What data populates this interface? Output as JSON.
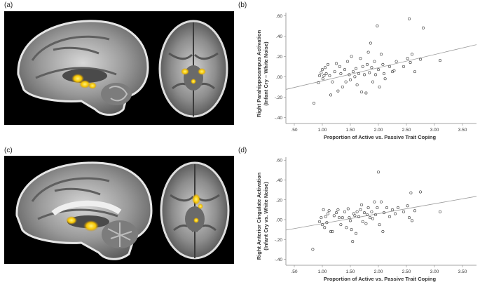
{
  "labels": {
    "a": "(a)",
    "b": "(b)",
    "c": "(c)",
    "d": "(d)"
  },
  "chart_data": [
    {
      "type": "scatter",
      "xlabel": "Proportion of Active vs. Passive Trait Coping",
      "ylabel": "Right Parahippocampus Activation (Infant Cry – White Noise)",
      "xlim": [
        0.35,
        3.75
      ],
      "ylim": [
        -0.46,
        0.63
      ],
      "xticks": [
        ".50",
        "1.00",
        "1.50",
        "2.00",
        "2.50",
        "3.00",
        "3.50"
      ],
      "xtick_values": [
        0.5,
        1.0,
        1.5,
        2.0,
        2.5,
        3.0,
        3.5
      ],
      "yticks": [
        "-.40",
        "-.20",
        ".00",
        ".20",
        ".40",
        ".60"
      ],
      "ytick_values": [
        -0.4,
        -0.2,
        0.0,
        0.2,
        0.4,
        0.6
      ],
      "fit_line": {
        "x": [
          0.35,
          3.75
        ],
        "y": [
          -0.125,
          0.315
        ]
      },
      "points": [
        [
          0.85,
          -0.26
        ],
        [
          0.93,
          -0.06
        ],
        [
          0.95,
          0.01
        ],
        [
          0.98,
          0.04
        ],
        [
          1.0,
          0.07
        ],
        [
          1.01,
          -0.02
        ],
        [
          1.03,
          0.01
        ],
        [
          1.05,
          0.09
        ],
        [
          1.07,
          0.03
        ],
        [
          1.1,
          0.12
        ],
        [
          1.13,
          0.01
        ],
        [
          1.15,
          -0.18
        ],
        [
          1.18,
          -0.05
        ],
        [
          1.22,
          0.05
        ],
        [
          1.25,
          0.13
        ],
        [
          1.28,
          -0.14
        ],
        [
          1.31,
          0.1
        ],
        [
          1.33,
          0.03
        ],
        [
          1.36,
          -0.1
        ],
        [
          1.4,
          0.07
        ],
        [
          1.42,
          -0.05
        ],
        [
          1.45,
          0.15
        ],
        [
          1.48,
          0.02
        ],
        [
          1.5,
          -0.03
        ],
        [
          1.52,
          0.2
        ],
        [
          1.55,
          0.05
        ],
        [
          1.58,
          0.0
        ],
        [
          1.6,
          0.08
        ],
        [
          1.62,
          -0.08
        ],
        [
          1.65,
          0.03
        ],
        [
          1.68,
          0.18
        ],
        [
          1.7,
          -0.15
        ],
        [
          1.72,
          0.1
        ],
        [
          1.75,
          0.02
        ],
        [
          1.78,
          -0.16
        ],
        [
          1.8,
          0.12
        ],
        [
          1.82,
          0.24
        ],
        [
          1.84,
          0.04
        ],
        [
          1.86,
          0.33
        ],
        [
          1.88,
          0.09
        ],
        [
          1.9,
          -0.05
        ],
        [
          1.93,
          0.15
        ],
        [
          1.95,
          0.02
        ],
        [
          1.98,
          0.5
        ],
        [
          2.0,
          0.07
        ],
        [
          2.02,
          -0.1
        ],
        [
          2.05,
          0.22
        ],
        [
          2.08,
          0.12
        ],
        [
          2.1,
          0.03
        ],
        [
          2.12,
          -0.02
        ],
        [
          2.2,
          0.1
        ],
        [
          2.25,
          0.05
        ],
        [
          2.28,
          0.06
        ],
        [
          2.32,
          0.15
        ],
        [
          2.45,
          0.1
        ],
        [
          2.52,
          0.18
        ],
        [
          2.55,
          0.57
        ],
        [
          2.57,
          0.14
        ],
        [
          2.6,
          0.22
        ],
        [
          2.65,
          0.05
        ],
        [
          2.75,
          0.17
        ],
        [
          2.8,
          0.48
        ],
        [
          3.1,
          0.16
        ]
      ]
    },
    {
      "type": "scatter",
      "xlabel": "Proportion of Active vs. Passive Trait Coping",
      "ylabel": "Right Anterior Cingulate Activation (Infant Cry vs. White Noise)",
      "xlim": [
        0.35,
        3.75
      ],
      "ylim": [
        -0.46,
        0.63
      ],
      "xticks": [
        ".50",
        "1.00",
        "1.50",
        "2.00",
        "2.50",
        "3.00",
        "3.50"
      ],
      "xtick_values": [
        0.5,
        1.0,
        1.5,
        2.0,
        2.5,
        3.0,
        3.5
      ],
      "yticks": [
        "-.40",
        "-.20",
        ".00",
        ".20",
        ".40",
        ".60"
      ],
      "ytick_values": [
        -0.4,
        -0.2,
        0.0,
        0.2,
        0.4,
        0.6
      ],
      "fit_line": {
        "x": [
          0.35,
          3.75
        ],
        "y": [
          -0.105,
          0.235
        ]
      },
      "points": [
        [
          0.83,
          -0.3
        ],
        [
          0.95,
          -0.02
        ],
        [
          0.98,
          0.02
        ],
        [
          1.0,
          -0.05
        ],
        [
          1.02,
          0.1
        ],
        [
          1.04,
          -0.08
        ],
        [
          1.06,
          0.03
        ],
        [
          1.08,
          -0.03
        ],
        [
          1.1,
          0.06
        ],
        [
          1.12,
          0.09
        ],
        [
          1.15,
          -0.12
        ],
        [
          1.18,
          -0.12
        ],
        [
          1.21,
          0.04
        ],
        [
          1.25,
          0.07
        ],
        [
          1.28,
          0.1
        ],
        [
          1.3,
          0.02
        ],
        [
          1.33,
          -0.05
        ],
        [
          1.36,
          0.02
        ],
        [
          1.4,
          0.08
        ],
        [
          1.43,
          -0.08
        ],
        [
          1.46,
          0.11
        ],
        [
          1.48,
          0.02
        ],
        [
          1.5,
          -0.01
        ],
        [
          1.52,
          -0.1
        ],
        [
          1.54,
          -0.22
        ],
        [
          1.56,
          0.06
        ],
        [
          1.58,
          0.04
        ],
        [
          1.6,
          -0.14
        ],
        [
          1.62,
          0.08
        ],
        [
          1.65,
          0.03
        ],
        [
          1.68,
          0.1
        ],
        [
          1.7,
          0.15
        ],
        [
          1.72,
          -0.02
        ],
        [
          1.75,
          0.07
        ],
        [
          1.78,
          -0.04
        ],
        [
          1.8,
          0.05
        ],
        [
          1.82,
          0.12
        ],
        [
          1.85,
          0.02
        ],
        [
          1.88,
          0.08
        ],
        [
          1.9,
          0.01
        ],
        [
          1.93,
          0.18
        ],
        [
          1.95,
          0.05
        ],
        [
          1.98,
          0.12
        ],
        [
          2.0,
          0.48
        ],
        [
          2.02,
          -0.05
        ],
        [
          2.05,
          0.18
        ],
        [
          2.08,
          -0.12
        ],
        [
          2.1,
          0.07
        ],
        [
          2.15,
          0.12
        ],
        [
          2.2,
          0.03
        ],
        [
          2.25,
          0.1
        ],
        [
          2.3,
          0.06
        ],
        [
          2.35,
          0.12
        ],
        [
          2.45,
          0.08
        ],
        [
          2.52,
          0.14
        ],
        [
          2.55,
          0.02
        ],
        [
          2.58,
          0.27
        ],
        [
          2.6,
          -0.01
        ],
        [
          2.65,
          0.09
        ],
        [
          2.75,
          0.28
        ],
        [
          3.1,
          0.08
        ]
      ]
    }
  ]
}
